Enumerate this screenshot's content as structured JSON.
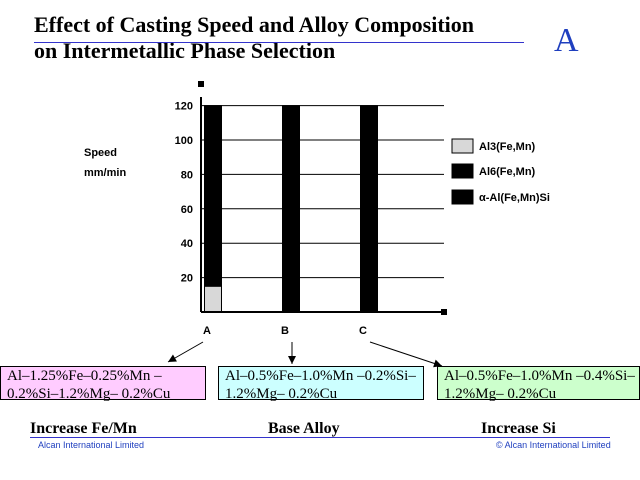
{
  "slide": {
    "title_line1": "Effect of Casting Speed and Alloy Composition",
    "title_line2": "on Intermetallic Phase Selection",
    "letter": "A"
  },
  "chart_data": {
    "type": "bar",
    "stacked": true,
    "ylabel_line1": "Speed",
    "ylabel_line2": "mm/min",
    "ylim": [
      0,
      120
    ],
    "yticks": [
      "20",
      "40",
      "60",
      "80",
      "100",
      "120"
    ],
    "categories": [
      "A",
      "B",
      "C"
    ],
    "series": [
      {
        "name": "Al3(Fe,Mn)",
        "color": "#d8d8d8",
        "values": [
          15,
          0,
          0
        ]
      },
      {
        "name": "Al6(Fe,Mn)",
        "color": "#000000",
        "values": [
          105,
          120,
          120
        ]
      },
      {
        "name": "α-Al(Fe,Mn)Si",
        "color": "#000000",
        "values": [
          0,
          0,
          0
        ]
      }
    ],
    "legend": [
      "Al3(Fe,Mn)",
      "Al6(Fe,Mn)",
      "α-Al(Fe,Mn)Si"
    ],
    "legend_position": "right",
    "grid": true
  },
  "alloys": [
    {
      "composition": "Al–1.25%Fe–0.25%Mn –0.2%Si–1.2%Mg– 0.2%Cu",
      "caption": "Increase Fe/Mn"
    },
    {
      "composition": "Al–0.5%Fe–1.0%Mn –0.2%Si–1.2%Mg– 0.2%Cu",
      "caption": "Base Alloy"
    },
    {
      "composition": "Al–0.5%Fe–1.0%Mn –0.4%Si–1.2%Mg– 0.2%Cu",
      "caption": "Increase Si"
    }
  ],
  "footer": {
    "left": "Alcan International Limited",
    "right": "© Alcan International Limited"
  }
}
